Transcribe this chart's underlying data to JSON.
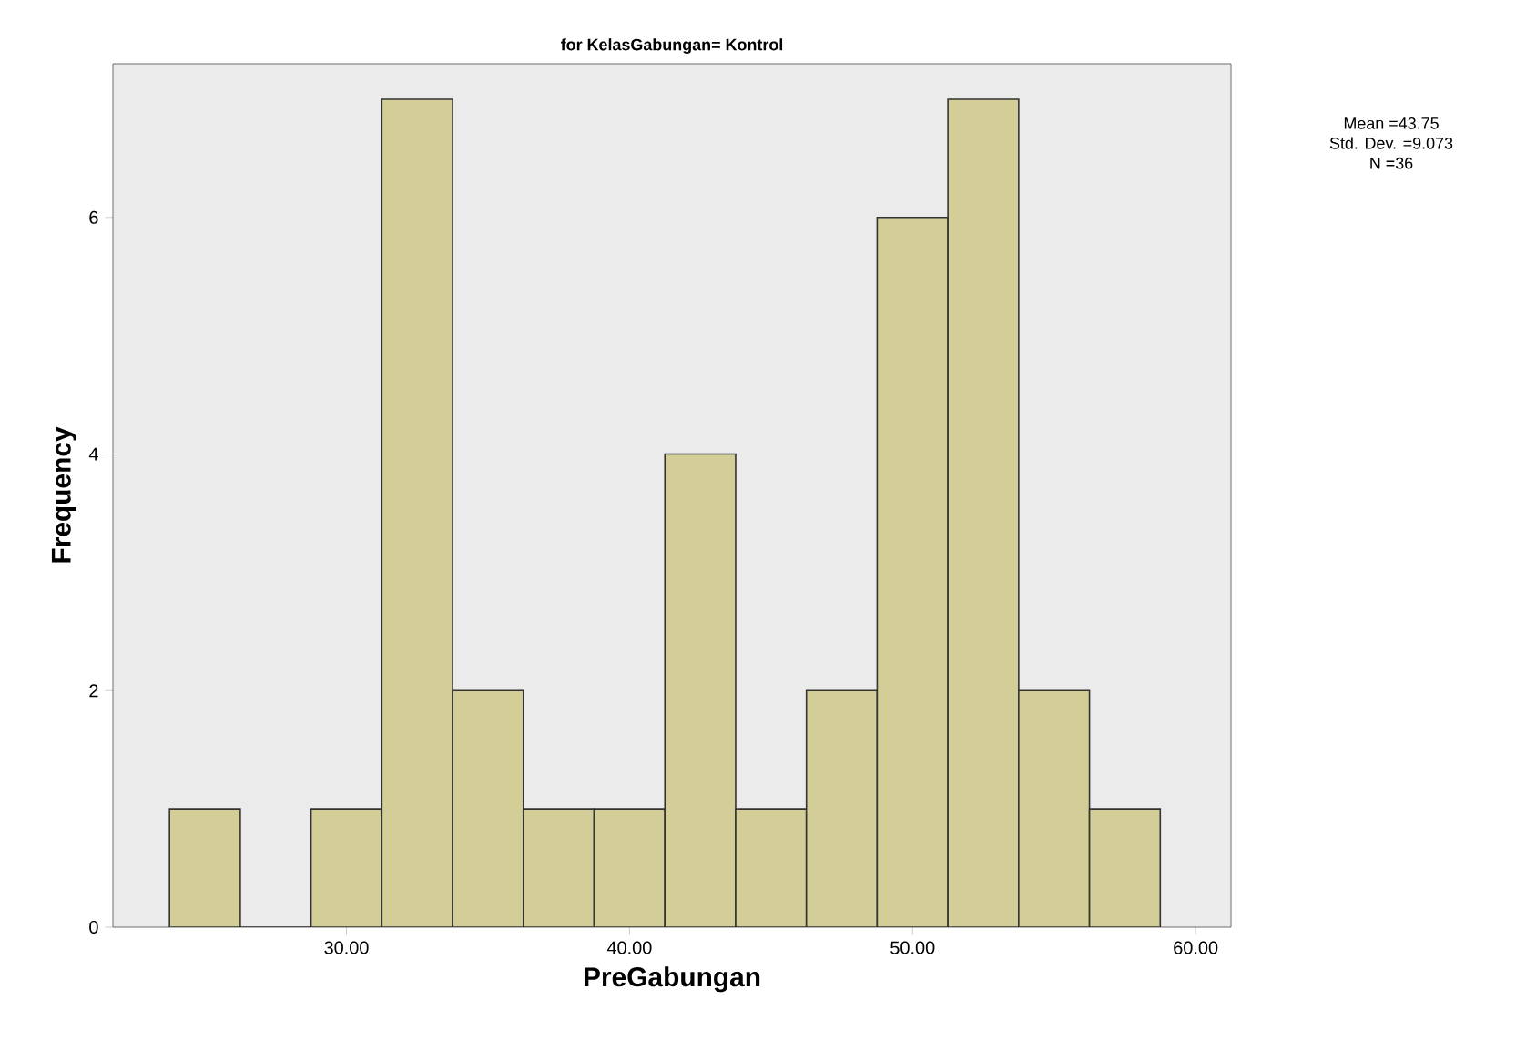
{
  "chart_data": {
    "type": "histogram",
    "title": "for KelasGabungan= Kontrol",
    "xlabel": "PreGabungan",
    "ylabel": "Frequency",
    "bins": [
      23.75,
      26.25,
      28.75,
      31.25,
      33.75,
      36.25,
      38.75,
      41.25,
      43.75,
      46.25,
      48.75,
      51.25,
      53.75,
      56.25,
      58.75
    ],
    "values": [
      1,
      0,
      1,
      7,
      2,
      1,
      1,
      4,
      1,
      2,
      6,
      7,
      2,
      1
    ],
    "color": "#d3ce98",
    "xlim": [
      21.75,
      61.25
    ],
    "ylim": [
      0,
      7.3
    ],
    "xticks": [
      {
        "value": 30,
        "label": "30.00"
      },
      {
        "value": 40,
        "label": "40.00"
      },
      {
        "value": 50,
        "label": "50.00"
      },
      {
        "value": 60,
        "label": "60.00"
      }
    ],
    "yticks": [
      0,
      2,
      4,
      6
    ],
    "grid": false,
    "annotations": [
      "Mean =43.75",
      "Std. Dev. =9.073",
      "N =36"
    ]
  }
}
